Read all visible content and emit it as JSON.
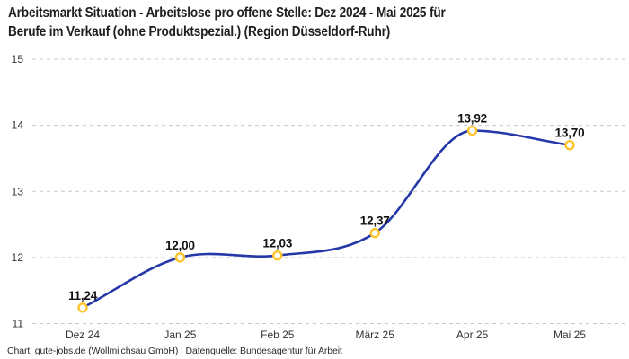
{
  "header": {
    "title_line1": "Arbeitsmarkt Situation - Arbeitslose pro offene Stelle: Dez 2024 - Mai 2025 für",
    "title_line2": "Berufe im Verkauf (ohne Produktspezial.) (Region Düsseldorf-Ruhr)"
  },
  "chart_data": {
    "type": "line",
    "title": "Arbeitsmarkt Situation - Arbeitslose pro offene Stelle: Dez 2024 - Mai 2025 für Berufe im Verkauf (ohne Produktspezial.) (Region Düsseldorf-Ruhr)",
    "categories": [
      "Dez 24",
      "Jan 25",
      "Feb 25",
      "März 25",
      "Apr 25",
      "Mai 25"
    ],
    "values": [
      11.24,
      12.0,
      12.03,
      12.37,
      13.92,
      13.7
    ],
    "point_labels": [
      "11,24",
      "12,00",
      "12,03",
      "12,37",
      "13,92",
      "13,70"
    ],
    "xlabel": "",
    "ylabel": "",
    "ylim": [
      11,
      15
    ],
    "yticks": [
      11,
      12,
      13,
      14,
      15
    ],
    "grid": "horizontal-dashed",
    "legend": "none",
    "line_color": "#2438A8",
    "marker_stroke_color": "#FDC42C",
    "marker_fill_color": "#FFFFFF"
  },
  "footer": {
    "credit": "Chart: gute-jobs.de (Wollmilchsau GmbH) | Datenquelle: Bundesagentur für Arbeit"
  }
}
